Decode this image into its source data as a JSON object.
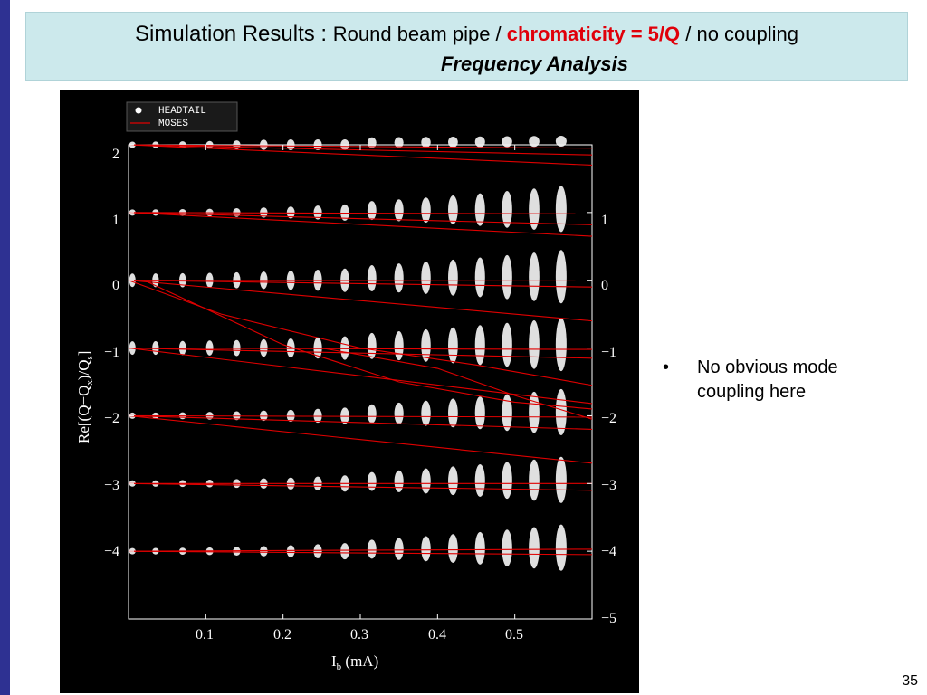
{
  "slide": {
    "title_prefix": "Simulation Results",
    "title_colon": " : ",
    "title_part1": "Round beam pipe / ",
    "title_highlight": "chromaticity = 5/Q",
    "title_part2": " / no coupling",
    "subtitle": "Frequency Analysis",
    "page_number": "35",
    "accent_color": "#e0000a",
    "title_bg": "#cce9ec",
    "side_bar_color": "#2e3192"
  },
  "bullets": [
    {
      "marker": "•",
      "text": "No obvious mode coupling here"
    }
  ],
  "chart_data": {
    "type": "scatter",
    "xlabel": "I",
    "xlabel_subscript": "b",
    "xlabel_unit": " (mA)",
    "ylabel": "Re[(Q−Q",
    "ylabel_sub1": "x",
    "ylabel_mid": ")/Q",
    "ylabel_sub2": "s",
    "ylabel_end": "]",
    "xlim": [
      0,
      0.6
    ],
    "ylim": [
      -5,
      2
    ],
    "x_ticks": [
      0.1,
      0.2,
      0.3,
      0.4,
      0.5
    ],
    "x_tick_labels": [
      "0.1",
      "0.2",
      "0.3",
      "0.4",
      "0.5"
    ],
    "y_ticks_left": [
      2,
      1,
      0,
      -1,
      -2,
      -3,
      -4
    ],
    "y_tick_labels_left": [
      "2",
      "1",
      "0",
      "−1",
      "−2",
      "−3",
      "−4"
    ],
    "y_ticks_right": [
      1,
      0,
      -1,
      -2,
      -3,
      -4,
      -5
    ],
    "y_tick_labels_right": [
      "1",
      "0",
      "−1",
      "−2",
      "−3",
      "−4",
      "−5"
    ],
    "legend": [
      {
        "name": "HEADTAIL",
        "marker": "dot",
        "color": "#ffffff"
      },
      {
        "name": "MOSES",
        "marker": "line",
        "color": "#e00000"
      }
    ],
    "legend_position": "top-left",
    "headtail_currents": [
      0.005,
      0.035,
      0.07,
      0.105,
      0.14,
      0.175,
      0.21,
      0.245,
      0.28,
      0.315,
      0.35,
      0.385,
      0.42,
      0.455,
      0.49,
      0.525,
      0.56
    ],
    "headtail_modes": [
      2,
      1,
      0,
      -1,
      -2,
      -3,
      -4
    ],
    "moses_lines": [
      {
        "x": [
          0,
          0.6
        ],
        "y": [
          2.0,
          1.95
        ]
      },
      {
        "x": [
          0,
          0.6
        ],
        "y": [
          2.0,
          1.7
        ]
      },
      {
        "x": [
          0,
          0.6
        ],
        "y": [
          2.0,
          1.85
        ]
      },
      {
        "x": [
          0,
          0.6
        ],
        "y": [
          1.0,
          0.98
        ]
      },
      {
        "x": [
          0,
          0.6
        ],
        "y": [
          1.0,
          0.82
        ]
      },
      {
        "x": [
          0,
          0.6
        ],
        "y": [
          1.0,
          0.65
        ]
      },
      {
        "x": [
          0,
          0.6
        ],
        "y": [
          0.0,
          -0.01
        ]
      },
      {
        "x": [
          0,
          0.6
        ],
        "y": [
          0.0,
          -0.1
        ]
      },
      {
        "x": [
          0,
          0.6
        ],
        "y": [
          0.0,
          -0.6
        ]
      },
      {
        "x": [
          0,
          0.6
        ],
        "y": [
          -1.0,
          -1.02
        ]
      },
      {
        "x": [
          0,
          0.6
        ],
        "y": [
          -1.0,
          -1.15
        ]
      },
      {
        "x": [
          0,
          0.6
        ],
        "y": [
          -1.0,
          -1.82
        ]
      },
      {
        "x": [
          0,
          0.6
        ],
        "y": [
          -2.0,
          -2.02
        ]
      },
      {
        "x": [
          0,
          0.6
        ],
        "y": [
          -2.0,
          -2.2
        ]
      },
      {
        "x": [
          0,
          0.6
        ],
        "y": [
          -2.0,
          -2.7
        ]
      },
      {
        "x": [
          0,
          0.6
        ],
        "y": [
          -3.0,
          -3.0
        ]
      },
      {
        "x": [
          0,
          0.6
        ],
        "y": [
          -3.0,
          -3.1
        ]
      },
      {
        "x": [
          0,
          0.6
        ],
        "y": [
          -4.0,
          -3.97
        ]
      },
      {
        "x": [
          0,
          0.6
        ],
        "y": [
          -4.0,
          -4.05
        ]
      },
      {
        "x": [
          0,
          0.12,
          0.3,
          0.45,
          0.6
        ],
        "y": [
          0.0,
          -0.5,
          -1.0,
          -1.25,
          -1.55
        ]
      },
      {
        "x": [
          0.02,
          0.2,
          0.35,
          0.5,
          0.6
        ],
        "y": [
          0.0,
          -0.95,
          -1.5,
          -1.8,
          -1.9
        ]
      },
      {
        "x": [
          0.25,
          0.4,
          0.5,
          0.6
        ],
        "y": [
          -1.0,
          -1.3,
          -1.7,
          -2.05
        ]
      }
    ]
  }
}
